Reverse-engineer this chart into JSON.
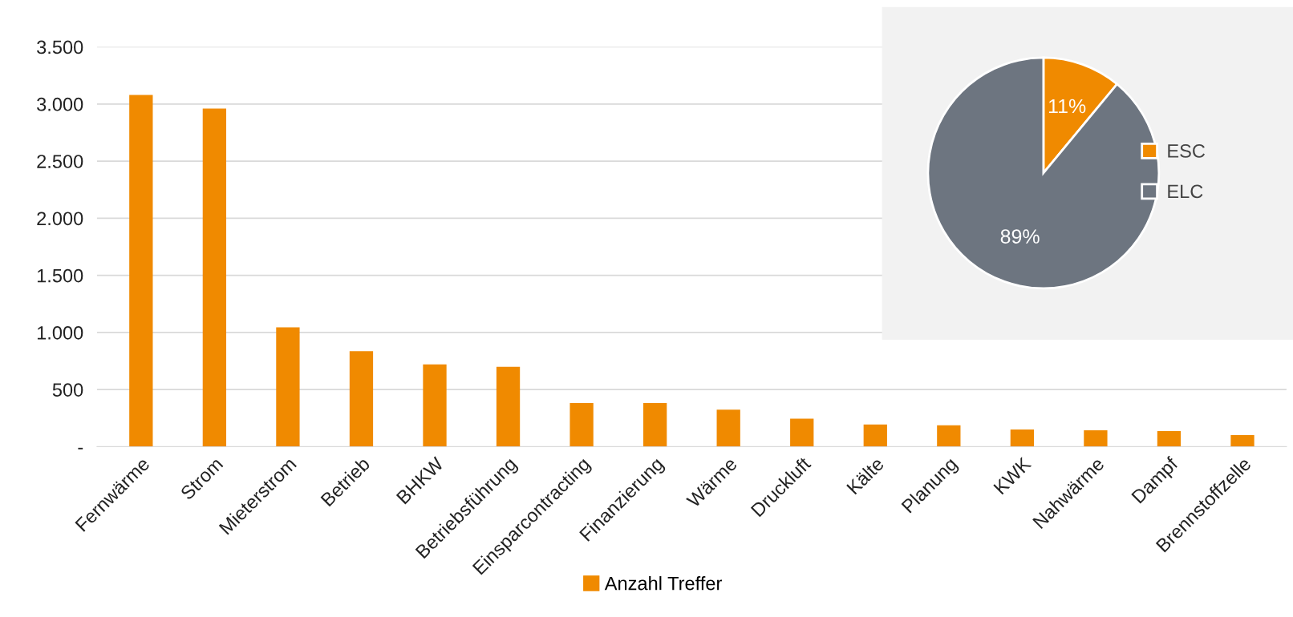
{
  "chart_data": [
    {
      "type": "bar",
      "categories": [
        "Fernwärme",
        "Strom",
        "Mieterstrom",
        "Betrieb",
        "BHKW",
        "Betriebsführung",
        "Einsparcontracting",
        "Finanzierung",
        "Wärme",
        "Druckluft",
        "Kälte",
        "Planung",
        "KWK",
        "Nahwärme",
        "Dampf",
        "Brennstoffzelle"
      ],
      "series": [
        {
          "name": "Anzahl Treffer",
          "color": "#f08a00",
          "values": [
            3080,
            2960,
            1045,
            836,
            721,
            699,
            382,
            382,
            324,
            245,
            195,
            187,
            151,
            144,
            137,
            101
          ]
        }
      ],
      "ylim": [
        0,
        3500
      ],
      "yticks": [
        {
          "value": 0,
          "label": "-"
        },
        {
          "value": 500,
          "label": "500"
        },
        {
          "value": 1000,
          "label": "1.000"
        },
        {
          "value": 1500,
          "label": "1.500"
        },
        {
          "value": 2000,
          "label": "2.000"
        },
        {
          "value": 2500,
          "label": "2.500"
        },
        {
          "value": 3000,
          "label": "3.000"
        },
        {
          "value": 3500,
          "label": "3.500"
        }
      ],
      "grid": "y",
      "legend": "bottom"
    },
    {
      "type": "pie",
      "categories": [
        "ESC",
        "ELC"
      ],
      "values": [
        11,
        89
      ],
      "colors": [
        "#f08a00",
        "#6d7580"
      ],
      "value_labels": [
        "11%",
        "89%"
      ],
      "legend": "right"
    }
  ]
}
